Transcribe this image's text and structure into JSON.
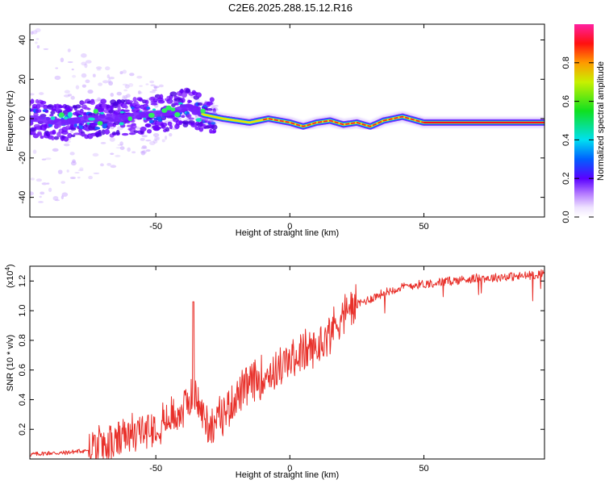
{
  "title": "C2E6.2025.288.15.12.R16",
  "chart_data": [
    {
      "type": "heatmap",
      "name": "doppler-spectrogram",
      "xlabel": "Height of straight line (km)",
      "ylabel": "Frequency (Hz)",
      "xlim": [
        -97,
        95
      ],
      "ylim": [
        -50,
        48
      ],
      "xticks": [
        "-50",
        "0",
        "50"
      ],
      "xtick_values": [
        -50,
        0,
        50
      ],
      "yticks": [
        "40",
        "20",
        "0",
        "-20",
        "-40"
      ],
      "ytick_values": [
        40,
        20,
        0,
        -20,
        -40
      ],
      "colorbar": {
        "label": "Normalized spectral amplitude",
        "range": [
          0,
          1
        ],
        "ticks": [
          "0.0",
          "0.2",
          "0.4",
          "0.6",
          "0.8"
        ],
        "tick_values": [
          0.0,
          0.2,
          0.4,
          0.6,
          0.8
        ]
      },
      "ridge": [
        {
          "x": -95,
          "f": 0
        },
        {
          "x": -85,
          "f": -2
        },
        {
          "x": -75,
          "f": 0
        },
        {
          "x": -65,
          "f": 0
        },
        {
          "x": -55,
          "f": 2
        },
        {
          "x": -45,
          "f": 3
        },
        {
          "x": -38,
          "f": 6
        },
        {
          "x": -32,
          "f": 2
        },
        {
          "x": -25,
          "f": 0
        },
        {
          "x": -15,
          "f": -2
        },
        {
          "x": -8,
          "f": 0
        },
        {
          "x": 0,
          "f": -2
        },
        {
          "x": 5,
          "f": -4
        },
        {
          "x": 10,
          "f": -2
        },
        {
          "x": 15,
          "f": -1
        },
        {
          "x": 20,
          "f": -3
        },
        {
          "x": 25,
          "f": -2
        },
        {
          "x": 30,
          "f": -4
        },
        {
          "x": 35,
          "f": -1
        },
        {
          "x": 42,
          "f": 1
        },
        {
          "x": 50,
          "f": -2
        },
        {
          "x": 95,
          "f": -2
        }
      ]
    },
    {
      "type": "line",
      "name": "snr",
      "xlabel": "Height of straight line (km)",
      "ylabel": "SNR (10 * v/v)",
      "multiplier": "(x10",
      "multiplier_exp": "4",
      "multiplier_close": ")",
      "xlim": [
        -97,
        95
      ],
      "ylim": [
        0,
        1.3
      ],
      "xticks": [
        "-50",
        "0",
        "50"
      ],
      "xtick_values": [
        -50,
        0,
        50
      ],
      "yticks": [
        "0.2",
        "0.4",
        "0.6",
        "0.8",
        "1.0",
        "1.2"
      ],
      "ytick_values": [
        0.2,
        0.4,
        0.6,
        0.8,
        1.0,
        1.2
      ],
      "color": "#e8302a",
      "x": [
        -97,
        -90,
        -85,
        -80,
        -75,
        -70,
        -65,
        -60,
        -55,
        -50,
        -45,
        -40,
        -36,
        -33,
        -30,
        -25,
        -20,
        -15,
        -10,
        -5,
        0,
        5,
        10,
        15,
        20,
        25,
        30,
        35,
        40,
        45,
        50,
        55,
        60,
        65,
        70,
        75,
        80,
        85,
        90,
        95
      ],
      "y": [
        0.03,
        0.04,
        0.04,
        0.05,
        0.06,
        0.08,
        0.11,
        0.15,
        0.19,
        0.23,
        0.27,
        0.33,
        0.45,
        0.32,
        0.22,
        0.3,
        0.42,
        0.5,
        0.56,
        0.6,
        0.66,
        0.72,
        0.74,
        0.86,
        0.98,
        1.04,
        1.08,
        1.12,
        1.15,
        1.17,
        1.18,
        1.19,
        1.2,
        1.21,
        1.22,
        1.22,
        1.23,
        1.23,
        1.24,
        1.25
      ],
      "spike": {
        "x": -36,
        "y": 1.06
      }
    }
  ]
}
